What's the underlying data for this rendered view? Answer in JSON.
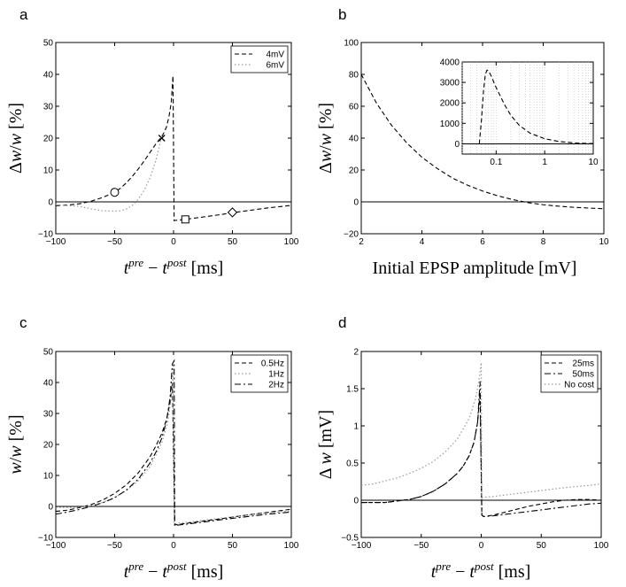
{
  "chart_data": [
    {
      "panel": "a",
      "type": "line",
      "xlabel": "t^{pre} − t^{post} [ms]",
      "ylabel": "Δw/w [%]",
      "xlim": [
        -100,
        100
      ],
      "ylim": [
        -10,
        50
      ],
      "xticks": [
        -100,
        -50,
        0,
        50,
        100
      ],
      "yticks": [
        -10,
        0,
        10,
        20,
        30,
        40,
        50
      ],
      "legend": "top-right",
      "series": [
        {
          "name": "4mV",
          "style": "dashed",
          "color": "#000000",
          "x": [
            -100,
            -90,
            -80,
            -70,
            -60,
            -55,
            -50,
            -45,
            -40,
            -35,
            -30,
            -25,
            -20,
            -15,
            -10,
            -8,
            -6,
            -4,
            -2,
            -0.5,
            0.5,
            2,
            10,
            20,
            30,
            40,
            50,
            60,
            70,
            80,
            90,
            100
          ],
          "y": [
            -1.2,
            -1.0,
            -0.6,
            0.2,
            1.4,
            2.2,
            3.0,
            4.3,
            6.0,
            8.0,
            10.3,
            12.8,
            15.5,
            18.2,
            20.5,
            21.8,
            23.5,
            26.5,
            31.0,
            39.5,
            -5.9,
            -5.8,
            -5.5,
            -5.0,
            -4.5,
            -4.0,
            -3.4,
            -2.9,
            -2.4,
            -1.9,
            -1.5,
            -1.1
          ]
        },
        {
          "name": "6mV",
          "style": "dotted",
          "color": "#999999",
          "x": [
            -100,
            -80,
            -70,
            -60,
            -50,
            -45,
            -40,
            -35,
            -30,
            -25,
            -20,
            -15,
            -12,
            -10
          ],
          "y": [
            -0.9,
            -1.4,
            -2.2,
            -2.8,
            -2.9,
            -2.8,
            -2.2,
            -1.1,
            0.8,
            3.6,
            7.5,
            13.0,
            17.5,
            21.0
          ]
        }
      ],
      "markers": [
        {
          "shape": "circle",
          "x": -50,
          "y": 3
        },
        {
          "shape": "cross",
          "x": -10,
          "y": 20
        },
        {
          "shape": "square",
          "x": 10,
          "y": -5.5
        },
        {
          "shape": "diamond",
          "x": 50,
          "y": -3.3
        }
      ]
    },
    {
      "panel": "b",
      "type": "line",
      "xlabel": "Initial EPSP amplitude [mV]",
      "ylabel": "Δw/w [%]",
      "xlim": [
        2,
        10
      ],
      "ylim": [
        -20,
        100
      ],
      "xticks": [
        2,
        4,
        6,
        8,
        10
      ],
      "yticks": [
        -20,
        0,
        20,
        40,
        60,
        80,
        100
      ],
      "series": [
        {
          "style": "dashed",
          "color": "#000000",
          "x": [
            2,
            2.5,
            3,
            3.5,
            4,
            4.5,
            5,
            5.5,
            6,
            6.5,
            7,
            7.5,
            8,
            8.5,
            9,
            9.5,
            10
          ],
          "y": [
            80,
            62,
            48,
            37,
            28,
            21,
            15,
            10.5,
            6.8,
            3.8,
            1.4,
            -0.5,
            -1.8,
            -2.7,
            -3.4,
            -3.9,
            -4.3
          ]
        }
      ],
      "inset": {
        "xscale": "log",
        "xlim": [
          0.02,
          10
        ],
        "ylim": [
          -500,
          4000
        ],
        "xticks": [
          0.1,
          1,
          10
        ],
        "yticks": [
          0,
          1000,
          2000,
          3000,
          4000
        ],
        "series": [
          {
            "style": "dashed",
            "color": "#000000",
            "x": [
              0.045,
              0.05,
              0.055,
              0.06,
              0.065,
              0.07,
              0.08,
              0.09,
              0.1,
              0.15,
              0.2,
              0.3,
              0.5,
              1,
              2,
              5,
              10
            ],
            "y": [
              0,
              1200,
              2600,
              3400,
              3600,
              3550,
              3300,
              3000,
              2750,
              1900,
              1400,
              900,
              520,
              250,
              110,
              30,
              10
            ]
          }
        ]
      }
    },
    {
      "panel": "c",
      "type": "line",
      "xlabel": "t^{pre} − t^{post} [ms]",
      "ylabel": "w/w [%]",
      "xlim": [
        -100,
        100
      ],
      "ylim": [
        -10,
        50
      ],
      "xticks": [
        -100,
        -50,
        0,
        50,
        100
      ],
      "yticks": [
        -10,
        0,
        10,
        20,
        30,
        40,
        50
      ],
      "legend": "top-right",
      "series": [
        {
          "name": "0.5Hz",
          "style": "dashed",
          "color": "#000000",
          "x": [
            -100,
            -90,
            -80,
            -70,
            -60,
            -50,
            -40,
            -30,
            -20,
            -15,
            -10,
            -6,
            -3,
            -1,
            1,
            2,
            20,
            40,
            60,
            80,
            100
          ],
          "y": [
            -1.6,
            -1.2,
            -0.4,
            0.6,
            2.1,
            4.2,
            7.0,
            10.8,
            16.0,
            19.5,
            23.5,
            28.0,
            33.5,
            40.0,
            -6.0,
            -5.9,
            -5.0,
            -4.0,
            -2.9,
            -1.9,
            -0.9
          ]
        },
        {
          "name": "1Hz",
          "style": "dotted",
          "color": "#999999",
          "x": [
            -100,
            -80,
            -70,
            -60,
            -50,
            -40,
            -30,
            -20,
            -10,
            -5,
            -2,
            -0.5,
            0.5,
            2,
            20,
            40,
            60,
            80,
            100
          ],
          "y": [
            -0.3,
            -0.3,
            0.3,
            1.3,
            2.9,
            5.1,
            8.3,
            12.8,
            20.5,
            27.0,
            35.0,
            46.0,
            -5.6,
            -5.5,
            -4.7,
            -3.8,
            -2.9,
            -2.1,
            -1.4
          ]
        },
        {
          "name": "2Hz",
          "style": "dashdot",
          "color": "#000000",
          "x": [
            -100,
            -90,
            -80,
            -70,
            -60,
            -50,
            -40,
            -30,
            -20,
            -15,
            -10,
            -6,
            -3,
            -1,
            0.5,
            1,
            2,
            20,
            40,
            60,
            80,
            100
          ],
          "y": [
            -2.5,
            -1.8,
            -1.0,
            0.0,
            1.2,
            2.8,
            5.3,
            8.8,
            14.0,
            17.5,
            22.0,
            27.5,
            35.0,
            46.0,
            47.0,
            -6.2,
            -6.1,
            -5.3,
            -4.3,
            -3.4,
            -2.5,
            -1.8
          ]
        }
      ]
    },
    {
      "panel": "d",
      "type": "line",
      "xlabel": "t^{pre} − t^{post} [ms]",
      "ylabel": "Δ w [mV]",
      "xlim": [
        -100,
        100
      ],
      "ylim": [
        -0.5,
        2
      ],
      "xticks": [
        -100,
        -50,
        0,
        50,
        100
      ],
      "yticks": [
        -0.5,
        0,
        0.5,
        1,
        1.5,
        2
      ],
      "legend": "top-right",
      "series": [
        {
          "name": "25ms",
          "style": "dashed",
          "color": "#000000",
          "x": [
            -100,
            -80,
            -60,
            -50,
            -40,
            -30,
            -20,
            -15,
            -10,
            -6,
            -3,
            -1,
            0.5,
            2,
            10,
            20,
            30,
            40,
            50,
            60,
            70,
            80,
            90,
            100
          ],
          "y": [
            -0.03,
            -0.03,
            0.01,
            0.05,
            0.12,
            0.22,
            0.36,
            0.46,
            0.6,
            0.78,
            1.05,
            1.45,
            -0.2,
            -0.22,
            -0.2,
            -0.16,
            -0.12,
            -0.08,
            -0.05,
            -0.02,
            0.0,
            0.01,
            0.01,
            0.0
          ]
        },
        {
          "name": "50ms",
          "style": "dashdot",
          "color": "#000000",
          "x": [
            -100,
            -80,
            -60,
            -50,
            -40,
            -30,
            -20,
            -15,
            -10,
            -6,
            -3,
            -1,
            0.5,
            2,
            10,
            20,
            30,
            40,
            50,
            60,
            70,
            80,
            90,
            100
          ],
          "y": [
            -0.03,
            -0.03,
            0.01,
            0.05,
            0.12,
            0.22,
            0.36,
            0.46,
            0.6,
            0.78,
            1.05,
            1.6,
            -0.2,
            -0.22,
            -0.21,
            -0.19,
            -0.17,
            -0.15,
            -0.13,
            -0.11,
            -0.09,
            -0.07,
            -0.05,
            -0.04
          ]
        },
        {
          "name": "No cost",
          "style": "dotted",
          "color": "#999999",
          "x": [
            -100,
            -90,
            -80,
            -70,
            -60,
            -50,
            -40,
            -30,
            -20,
            -10,
            -5,
            -2,
            0,
            0.5,
            2,
            10,
            30,
            50,
            70,
            90,
            100
          ],
          "y": [
            0.2,
            0.22,
            0.26,
            0.3,
            0.36,
            0.43,
            0.52,
            0.65,
            0.82,
            1.1,
            1.35,
            1.6,
            1.85,
            0.03,
            0.04,
            0.05,
            0.09,
            0.13,
            0.17,
            0.2,
            0.22
          ]
        }
      ]
    }
  ],
  "ui": {
    "panel_labels": [
      "a",
      "b",
      "c",
      "d"
    ],
    "ticks_x_a": [
      "−100",
      "−50",
      "0",
      "50",
      "100"
    ],
    "ticks_y_a": [
      "−10",
      "0",
      "10",
      "20",
      "30",
      "40",
      "50"
    ],
    "ticks_x_b": [
      "2",
      "4",
      "6",
      "8",
      "10"
    ],
    "ticks_y_b": [
      "−20",
      "0",
      "20",
      "40",
      "60",
      "80",
      "100"
    ],
    "ticks_x_inset": [
      "0.1",
      "1",
      "10"
    ],
    "ticks_y_inset": [
      "0",
      "1000",
      "2000",
      "3000",
      "4000"
    ],
    "ticks_y_d": [
      "−0.5",
      "0",
      "0.5",
      "1",
      "1.5",
      "2"
    ]
  }
}
